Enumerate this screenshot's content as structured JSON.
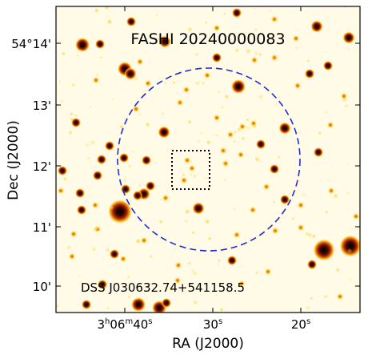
{
  "figure": {
    "title": "FASHI 20240000083",
    "source_label": "DSS J030632.74+541158.5",
    "y_axis_label": "Dec (J2000)",
    "x_axis_label": "RA (J2000)",
    "y_ticks": [
      "54°14'",
      "13'",
      "12'",
      "11'",
      "10'"
    ],
    "x_ticks": [
      {
        "h": "3",
        "hs": "h",
        "m": "06",
        "ms": "m",
        "s": "40",
        "ss": "s"
      },
      {
        "s": "30",
        "ss": "s"
      },
      {
        "s": "20",
        "ss": "s"
      }
    ],
    "colors": {
      "background": "#fffbe6",
      "circle": "#1f2bd8",
      "box": "#000000",
      "star_core": "#000000",
      "star_mid": "#8a1a00",
      "star_halo": "#ffb400"
    },
    "overlays": [
      "beam-circle-dashed",
      "source-box-dotted"
    ]
  }
}
